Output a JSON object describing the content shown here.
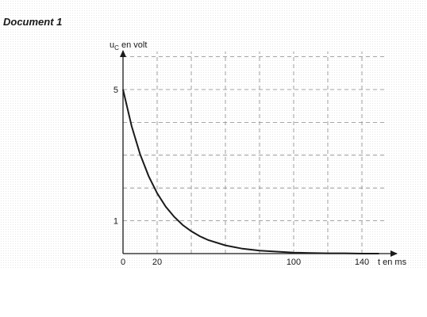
{
  "document": {
    "title": "Document 1"
  },
  "chart_data": {
    "type": "line",
    "ylabel_main": "u",
    "ylabel_sub": "C",
    "ylabel_rest": " en volt",
    "xlabel": "t en ms",
    "x_ticks": [
      {
        "value": 0,
        "label": "0"
      },
      {
        "value": 20,
        "label": "20"
      },
      {
        "value": 100,
        "label": "100"
      },
      {
        "value": 140,
        "label": "140"
      }
    ],
    "y_ticks": [
      {
        "value": 5,
        "label": "5"
      },
      {
        "value": 1,
        "label": "1"
      }
    ],
    "xlim": [
      0,
      150
    ],
    "ylim": [
      0,
      6
    ],
    "x_grid_step": 20,
    "y_grid_step": 1,
    "grid": true,
    "grid_style": "dashed",
    "series": [
      {
        "x": [
          0,
          5,
          10,
          15,
          20,
          25,
          30,
          35,
          40,
          45,
          50,
          60,
          70,
          80,
          90,
          100,
          110,
          120,
          130,
          140,
          150
        ],
        "y": [
          5.0,
          3.89,
          3.03,
          2.36,
          1.84,
          1.43,
          1.12,
          0.87,
          0.68,
          0.53,
          0.41,
          0.25,
          0.15,
          0.09,
          0.06,
          0.03,
          0.02,
          0.01,
          0.01,
          0.0,
          0.0
        ]
      }
    ]
  }
}
